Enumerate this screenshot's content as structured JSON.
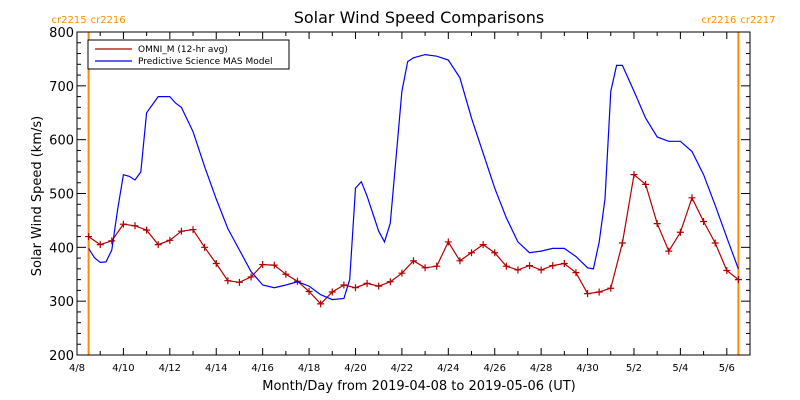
{
  "chart_data": {
    "type": "line",
    "title": "Solar Wind Speed Comparisons",
    "xlabel": "Month/Day from 2019-04-08 to 2019-05-06 (UT)",
    "ylabel": "Solar Wind Speed (km/s)",
    "xlim": [
      "2019-04-08",
      "2019-05-07"
    ],
    "ylim": [
      200,
      800
    ],
    "x_ticks": [
      "2019-04-08",
      "2019-04-10",
      "2019-04-12",
      "2019-04-14",
      "2019-04-16",
      "2019-04-18",
      "2019-04-20",
      "2019-04-22",
      "2019-04-24",
      "2019-04-26",
      "2019-04-28",
      "2019-04-30",
      "2019-05-02",
      "2019-05-04",
      "2019-05-06"
    ],
    "x_tick_labels": [
      "4/8",
      "4/10",
      "4/12",
      "4/14",
      "4/16",
      "4/18",
      "4/20",
      "4/22",
      "4/24",
      "4/26",
      "4/28",
      "4/30",
      "5/2",
      "5/4",
      "5/6"
    ],
    "y_ticks": [
      200,
      300,
      400,
      500,
      600,
      700,
      800
    ],
    "y_tick_labels": [
      "200",
      "300",
      "400",
      "500",
      "600",
      "700",
      "800"
    ],
    "grid": false,
    "legend_position": "top-left",
    "colors": {
      "omni": "#b00000",
      "model": "#0000ff",
      "rotation": "#ff8c00"
    },
    "rotation_markers": [
      {
        "x": "2019-04-08T12:00",
        "label_left": "cr2215",
        "label_right": "cr2216"
      },
      {
        "x": "2019-05-06T12:00",
        "label_left": "cr2216",
        "label_right": "cr2217"
      }
    ],
    "series": [
      {
        "name": "OMNI_M (12-hr avg)",
        "marker": "plus",
        "x": [
          "2019-04-08T12:00",
          "2019-04-09T00:00",
          "2019-04-09T12:00",
          "2019-04-10T00:00",
          "2019-04-10T12:00",
          "2019-04-11T00:00",
          "2019-04-11T12:00",
          "2019-04-12T00:00",
          "2019-04-12T12:00",
          "2019-04-13T00:00",
          "2019-04-13T12:00",
          "2019-04-14T00:00",
          "2019-04-14T12:00",
          "2019-04-15T00:00",
          "2019-04-15T12:00",
          "2019-04-16T00:00",
          "2019-04-16T12:00",
          "2019-04-17T00:00",
          "2019-04-17T12:00",
          "2019-04-18T00:00",
          "2019-04-18T12:00",
          "2019-04-19T00:00",
          "2019-04-19T12:00",
          "2019-04-20T00:00",
          "2019-04-20T12:00",
          "2019-04-21T00:00",
          "2019-04-21T12:00",
          "2019-04-22T00:00",
          "2019-04-22T12:00",
          "2019-04-23T00:00",
          "2019-04-23T12:00",
          "2019-04-24T00:00",
          "2019-04-24T12:00",
          "2019-04-25T00:00",
          "2019-04-25T12:00",
          "2019-04-26T00:00",
          "2019-04-26T12:00",
          "2019-04-27T00:00",
          "2019-04-27T12:00",
          "2019-04-28T00:00",
          "2019-04-28T12:00",
          "2019-04-29T00:00",
          "2019-04-29T12:00",
          "2019-04-30T00:00",
          "2019-04-30T12:00",
          "2019-05-01T00:00",
          "2019-05-01T12:00",
          "2019-05-02T00:00",
          "2019-05-02T12:00",
          "2019-05-03T00:00",
          "2019-05-03T12:00",
          "2019-05-04T00:00",
          "2019-05-04T12:00",
          "2019-05-05T00:00",
          "2019-05-05T12:00",
          "2019-05-06T00:00",
          "2019-05-06T12:00"
        ],
        "values": [
          420,
          405,
          412,
          443,
          440,
          432,
          405,
          413,
          430,
          433,
          400,
          370,
          338,
          335,
          345,
          368,
          367,
          350,
          337,
          318,
          295,
          317,
          330,
          325,
          333,
          328,
          336,
          352,
          375,
          362,
          365,
          410,
          375,
          390,
          405,
          390,
          365,
          358,
          366,
          358,
          366,
          370,
          353,
          314,
          317,
          324,
          408,
          535,
          517,
          444,
          393,
          428,
          492,
          448,
          408,
          357,
          340
        ]
      },
      {
        "name": "Predictive Science MAS Model",
        "marker": "none",
        "x": [
          "2019-04-08T12:00",
          "2019-04-08T18:00",
          "2019-04-09T00:00",
          "2019-04-09T06:00",
          "2019-04-09T12:00",
          "2019-04-09T18:00",
          "2019-04-10T00:00",
          "2019-04-10T06:00",
          "2019-04-10T12:00",
          "2019-04-10T18:00",
          "2019-04-11T00:00",
          "2019-04-11T12:00",
          "2019-04-12T00:00",
          "2019-04-12T06:00",
          "2019-04-12T12:00",
          "2019-04-13T00:00",
          "2019-04-13T12:00",
          "2019-04-14T00:00",
          "2019-04-14T12:00",
          "2019-04-15T00:00",
          "2019-04-15T12:00",
          "2019-04-16T00:00",
          "2019-04-16T12:00",
          "2019-04-17T00:00",
          "2019-04-17T12:00",
          "2019-04-18T00:00",
          "2019-04-18T12:00",
          "2019-04-19T00:00",
          "2019-04-19T12:00",
          "2019-04-19T18:00",
          "2019-04-20T00:00",
          "2019-04-20T06:00",
          "2019-04-20T12:00",
          "2019-04-21T00:00",
          "2019-04-21T06:00",
          "2019-04-21T12:00",
          "2019-04-22T00:00",
          "2019-04-22T06:00",
          "2019-04-22T12:00",
          "2019-04-23T00:00",
          "2019-04-23T12:00",
          "2019-04-24T00:00",
          "2019-04-24T12:00",
          "2019-04-25T00:00",
          "2019-04-25T12:00",
          "2019-04-26T00:00",
          "2019-04-26T12:00",
          "2019-04-27T00:00",
          "2019-04-27T12:00",
          "2019-04-28T00:00",
          "2019-04-28T12:00",
          "2019-04-29T00:00",
          "2019-04-29T12:00",
          "2019-04-30T00:00",
          "2019-04-30T06:00",
          "2019-04-30T12:00",
          "2019-04-30T18:00",
          "2019-05-01T00:00",
          "2019-05-01T06:00",
          "2019-05-01T12:00",
          "2019-05-02T00:00",
          "2019-05-02T12:00",
          "2019-05-03T00:00",
          "2019-05-03T12:00",
          "2019-05-04T00:00",
          "2019-05-04T12:00",
          "2019-05-05T00:00",
          "2019-05-05T12:00",
          "2019-05-06T00:00",
          "2019-05-06T12:00"
        ],
        "values": [
          398,
          381,
          372,
          373,
          395,
          470,
          535,
          532,
          525,
          540,
          650,
          680,
          680,
          668,
          660,
          615,
          550,
          490,
          435,
          395,
          355,
          330,
          325,
          330,
          336,
          328,
          312,
          303,
          305,
          340,
          510,
          522,
          495,
          430,
          410,
          445,
          690,
          745,
          752,
          758,
          755,
          748,
          715,
          640,
          575,
          510,
          455,
          410,
          390,
          393,
          398,
          398,
          383,
          362,
          360,
          410,
          490,
          690,
          738,
          738,
          690,
          640,
          605,
          597,
          597,
          578,
          535,
          478,
          418,
          360
        ]
      }
    ]
  }
}
